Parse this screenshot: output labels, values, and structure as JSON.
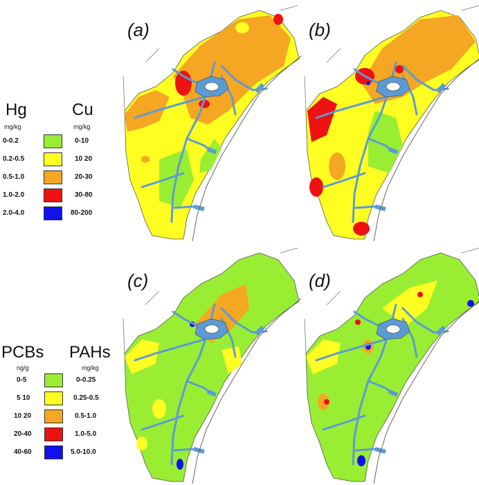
{
  "panels": [
    {
      "label": "(a)",
      "scheme": "hg"
    },
    {
      "label": "(b)",
      "scheme": "cu"
    },
    {
      "label": "(c)",
      "scheme": "pcb"
    },
    {
      "label": "(d)",
      "scheme": "pah"
    }
  ],
  "legend_top": {
    "left_title": "Hg",
    "left_unit": "mg/kg",
    "right_title": "Cu",
    "right_unit": "mg/kg",
    "classes": [
      {
        "left": "0-0.2",
        "right": "0-10",
        "color": "#99ee33"
      },
      {
        "left": "0.2-0.5",
        "right": "10 20",
        "color": "#ffff22"
      },
      {
        "left": "0.5-1.0",
        "right": "20-30",
        "color": "#f5a623"
      },
      {
        "left": "1.0-2.0",
        "right": "30-80",
        "color": "#ee1111"
      },
      {
        "left": "2.0-4.0",
        "right": "80-200",
        "color": "#1111ee"
      }
    ]
  },
  "legend_bottom": {
    "left_title": "PCBs",
    "left_unit": "ng/g",
    "right_title": "PAHs",
    "right_unit": "mg/kg",
    "classes": [
      {
        "left": "0-5",
        "right": "0-0.25",
        "color": "#99ee33"
      },
      {
        "left": "5 10",
        "right": "0.25-0.5",
        "color": "#ffff22"
      },
      {
        "left": "10 20",
        "right": "0.5-1.0",
        "color": "#f5a623"
      },
      {
        "left": "20-40",
        "right": "1.0-5.0",
        "color": "#ee1111"
      },
      {
        "left": "40-60",
        "right": "5.0-10.0",
        "color": "#1111ee"
      }
    ]
  }
}
